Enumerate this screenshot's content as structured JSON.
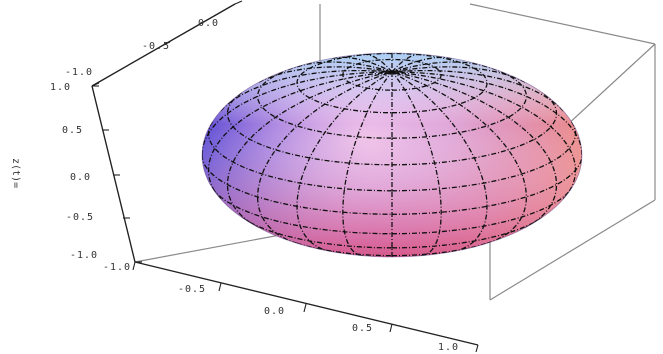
{
  "chart_data": {
    "type": "surface3d",
    "surface": "sphere",
    "radius": 1.0,
    "colors": {
      "top": "#9fc8f0",
      "left": "#5b4fd8",
      "center": "#e6a8d8",
      "right": "#f2a88a",
      "bottom": "#d9537a"
    },
    "axes": {
      "x": {
        "ticks": [
          -1.0,
          -0.5,
          0.0,
          0.5,
          1.0
        ],
        "labels": [
          "-1.0",
          "-0.5",
          "0.0",
          "0.5",
          "1.0"
        ]
      },
      "y": {
        "ticks": [
          -1.0,
          -0.5,
          0.0
        ],
        "labels": [
          "-1.0",
          "-0.5",
          "0.0"
        ]
      },
      "z": {
        "ticks": [
          1.0,
          0.5,
          0.0,
          -0.5,
          -1.0
        ],
        "labels": [
          "1.0",
          "0.5",
          "0.0",
          "-0.5",
          "-1.0"
        ],
        "label": "z(t)="
      }
    },
    "grid": "on",
    "box": "on"
  }
}
